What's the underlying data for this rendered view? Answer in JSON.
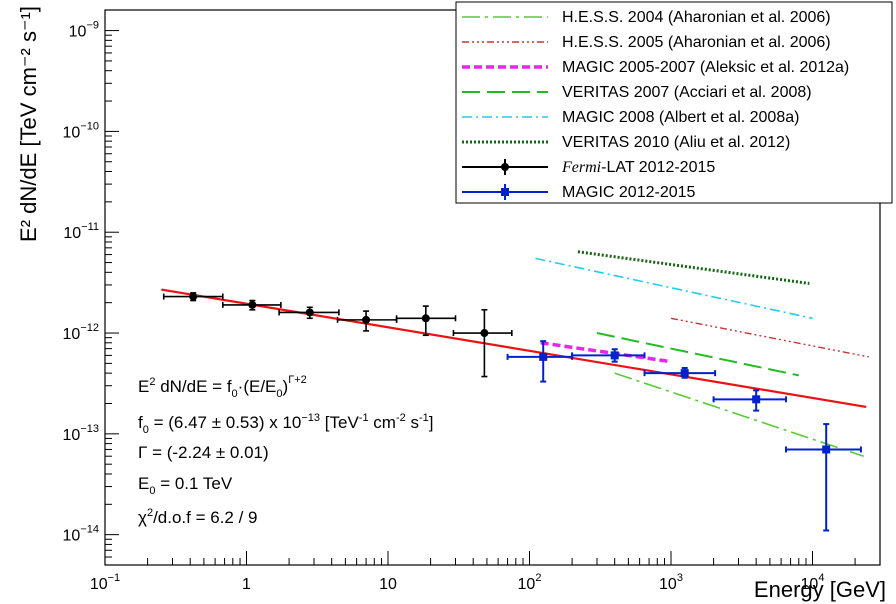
{
  "chart_data": {
    "type": "scatter",
    "xlabel": "Energy [GeV]",
    "ylabel": "E² dN/dE [TeV cm⁻² s⁻¹]",
    "xscale": "log",
    "yscale": "log",
    "xlim": [
      0.1,
      30000
    ],
    "ylim": [
      5e-15,
      1.6e-09
    ],
    "grid": false,
    "legend_position": "top-right",
    "x_ticks": [
      {
        "v": 0.1,
        "base": "10",
        "exp": "−1"
      },
      {
        "v": 1,
        "base": "1",
        "exp": ""
      },
      {
        "v": 10,
        "base": "10",
        "exp": ""
      },
      {
        "v": 100,
        "base": "10",
        "exp": "2"
      },
      {
        "v": 1000,
        "base": "10",
        "exp": "3"
      },
      {
        "v": 10000,
        "base": "10",
        "exp": "4"
      }
    ],
    "y_ticks": [
      {
        "v": 1e-14,
        "base": "10",
        "exp": "−14"
      },
      {
        "v": 1e-13,
        "base": "10",
        "exp": "−13"
      },
      {
        "v": 1e-12,
        "base": "10",
        "exp": "−12"
      },
      {
        "v": 1e-11,
        "base": "10",
        "exp": "−11"
      },
      {
        "v": 1e-10,
        "base": "10",
        "exp": "−10"
      },
      {
        "v": 1e-09,
        "base": "10",
        "exp": "−9"
      }
    ],
    "series": [
      {
        "name": "H.E.S.S. 2004 (Aharonian et al. 2006)",
        "kind": "line",
        "color": "#55cc33",
        "dash": "18,5,3,5",
        "width": 1.6,
        "x": [
          400,
          23000
        ],
        "y": [
          4e-13,
          6e-14
        ]
      },
      {
        "name": "H.E.S.S. 2005 (Aharonian et al. 2006)",
        "kind": "line",
        "color": "#cc3333",
        "dash": "7,3,2,3,2,3,2,3",
        "width": 1.4,
        "x": [
          1000,
          25000
        ],
        "y": [
          1.4e-12,
          5.8e-13
        ]
      },
      {
        "name": "MAGIC 2005-2007 (Aleksic et al. 2012a)",
        "kind": "line",
        "color": "#ee22ee",
        "dash": "8,4",
        "width": 3.5,
        "x": [
          120,
          1000
        ],
        "y": [
          8e-13,
          5.2e-13
        ]
      },
      {
        "name": "VERITAS 2007 (Acciari et al. 2008)",
        "kind": "line",
        "color": "#22bb22",
        "dash": "18,7",
        "width": 2,
        "x": [
          300,
          8000
        ],
        "y": [
          1e-12,
          3.8e-13
        ]
      },
      {
        "name": "MAGIC 2008 (Albert et al. 2008a)",
        "kind": "line",
        "color": "#22ccee",
        "dash": "10,4,2,4",
        "width": 1.6,
        "x": [
          110,
          10000
        ],
        "y": [
          5.5e-12,
          1.4e-12
        ]
      },
      {
        "name": "VERITAS 2010 (Aliu et al. 2012)",
        "kind": "line",
        "color": "#116611",
        "dash": "2,2",
        "width": 3,
        "x": [
          220,
          9500
        ],
        "y": [
          6.4e-12,
          3.1e-12
        ]
      },
      {
        "name": "Fermi-LAT 2012-2015",
        "kind": "points",
        "marker": "circle",
        "color": "#000000",
        "x": [
          0.42,
          1.1,
          2.8,
          7.0,
          18.5,
          48
        ],
        "y": [
          2.3e-12,
          1.9e-12,
          1.6e-12,
          1.35e-12,
          1.4e-12,
          1e-12
        ],
        "xlo": [
          0.26,
          0.68,
          1.7,
          4.4,
          11.5,
          29
        ],
        "xhi": [
          0.68,
          1.75,
          4.5,
          11.5,
          30,
          75
        ],
        "ylo": [
          2.1e-12,
          1.7e-12,
          1.4e-12,
          1.05e-12,
          9.5e-13,
          3.7e-13
        ],
        "yhi": [
          2.5e-12,
          2.1e-12,
          1.8e-12,
          1.65e-12,
          1.85e-12,
          1.7e-12
        ]
      },
      {
        "name": "MAGIC 2012-2015",
        "kind": "points",
        "marker": "square",
        "color": "#0022cc",
        "x": [
          125,
          400,
          1250,
          4000,
          12500
        ],
        "y": [
          5.8e-13,
          6e-13,
          4e-13,
          2.2e-13,
          7e-14
        ],
        "xlo": [
          70,
          200,
          650,
          2000,
          6500
        ],
        "xhi": [
          200,
          650,
          2050,
          6500,
          22000
        ],
        "ylo": [
          3.3e-13,
          5.2e-13,
          3.6e-13,
          1.7e-13,
          1.1e-14
        ],
        "yhi": [
          8.3e-13,
          6.9e-13,
          4.5e-13,
          2.7e-13,
          1.25e-13
        ]
      }
    ],
    "fit": {
      "color": "#ee1111",
      "x": [
        0.25,
        24000
      ],
      "y": [
        2.7e-12,
        1.85e-13
      ]
    },
    "annotations": {
      "l1": {
        "a": "E",
        "b": "2",
        "c": " dN/dE = f",
        "d": "0",
        "e": "·(E/E",
        "f": "0",
        "g": ")",
        "h": "Γ+2"
      },
      "l2": {
        "a": "f",
        "b": "0",
        "c": " = (6.47 ± 0.53) x 10",
        "d": "−13",
        "e": " [TeV",
        "f": "-1",
        "g": " cm",
        "h": "-2",
        "i": " s",
        "j": "-1",
        "k": "]"
      },
      "l3": "Γ = (-2.24 ± 0.01)",
      "l4": {
        "a": "E",
        "b": "0",
        "c": " = 0.1 TeV"
      },
      "l5": {
        "a": "χ",
        "b": "2",
        "c": "/d.o.f = 6.2 / 9"
      }
    },
    "legend_fermi": {
      "a": "Fermi",
      "b": "-LAT 2012-2015"
    }
  }
}
